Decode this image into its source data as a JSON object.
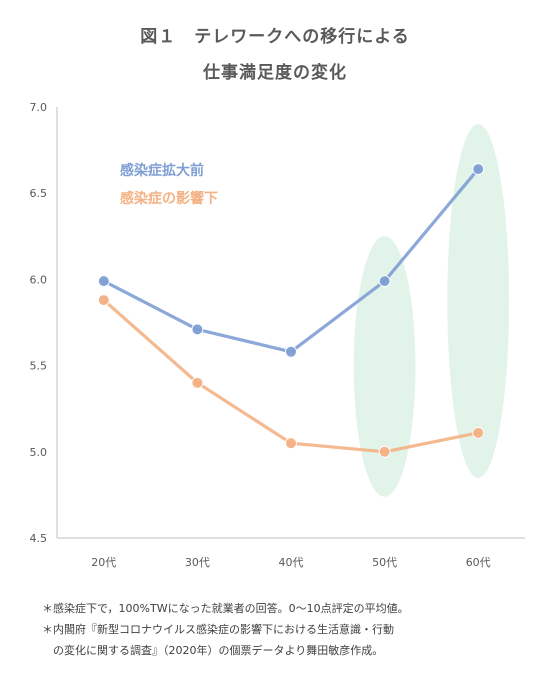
{
  "title_line1": "図１　テレワークへの移行による",
  "title_line2": "仕事満足度の変化",
  "chart_data": {
    "type": "line",
    "title": "図１　テレワークへの移行による 仕事満足度の変化",
    "categories": [
      "20代",
      "30代",
      "40代",
      "50代",
      "60代"
    ],
    "ylim": [
      4.5,
      7.0
    ],
    "yticks": [
      "4.5",
      "5.0",
      "5.5",
      "6.0",
      "6.5",
      "7.0"
    ],
    "grid": false,
    "legend_position": "upper-left",
    "series": [
      {
        "name": "感染症拡大前",
        "color": "#7f9fd4",
        "values": [
          5.99,
          5.71,
          5.58,
          5.99,
          6.64
        ]
      },
      {
        "name": "感染症の影響下",
        "color": "#f4b183",
        "values": [
          5.88,
          5.4,
          5.05,
          5.0,
          5.11
        ]
      }
    ],
    "highlight_categories": [
      "50代",
      "60代"
    ],
    "highlight_color": "#e2f3ea"
  },
  "notes": {
    "line1": "＊感染症下で，100%TWになった就業者の回答。0〜10点評定の平均値。",
    "line2": "＊内閣府『新型コロナウイルス感染症の影響下における生活意識・行動",
    "line3": "の変化に関する調査』（2020年）の個票データより舞田敏彦作成。"
  }
}
